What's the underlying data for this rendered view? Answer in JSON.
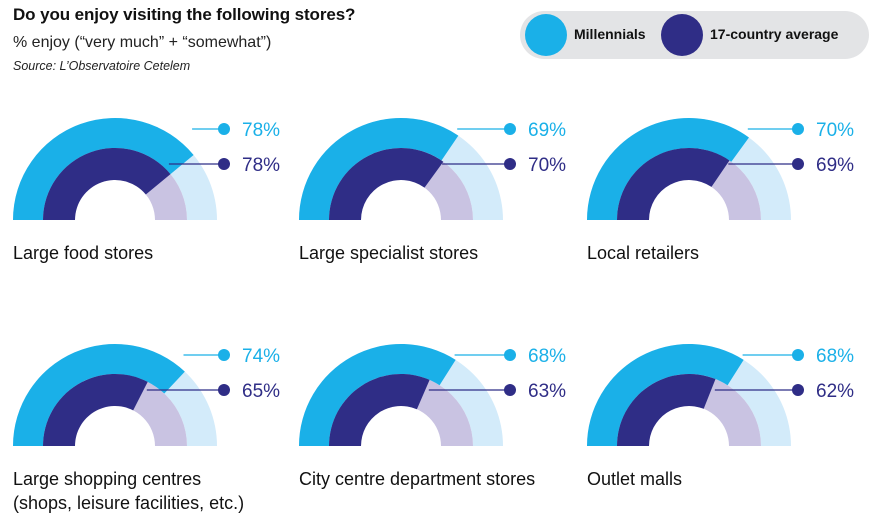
{
  "header": {
    "title": "Do you enjoy visiting the following stores?",
    "subtitle": "% enjoy (“very much” + “somewhat”)",
    "source": "Source: L’Observatoire Cetelem"
  },
  "legend": {
    "millennials": "Millennials",
    "average": "17-country average"
  },
  "colors": {
    "millennials": "#1ab0e8",
    "millennials_light": "#d3ebfa",
    "average": "#2f2d86",
    "average_light": "#c9c3e2"
  },
  "chart_data": {
    "type": "gauge",
    "series": [
      {
        "name": "Millennials",
        "values": [
          78,
          69,
          70,
          74,
          68,
          68
        ]
      },
      {
        "name": "17-country average",
        "values": [
          78,
          70,
          69,
          65,
          63,
          62
        ]
      }
    ],
    "categories": [
      [
        "Large food stores"
      ],
      [
        "Large specialist stores"
      ],
      [
        "Local retailers"
      ],
      [
        "Large shopping centres",
        "(shops, leisure facilities, etc.)"
      ],
      [
        "City centre department stores"
      ],
      [
        "Outlet malls"
      ]
    ],
    "value_labels": {
      "millennials": [
        "78%",
        "69%",
        "70%",
        "74%",
        "68%",
        "68%"
      ],
      "average": [
        "78%",
        "70%",
        "69%",
        "65%",
        "63%",
        "62%"
      ]
    }
  }
}
